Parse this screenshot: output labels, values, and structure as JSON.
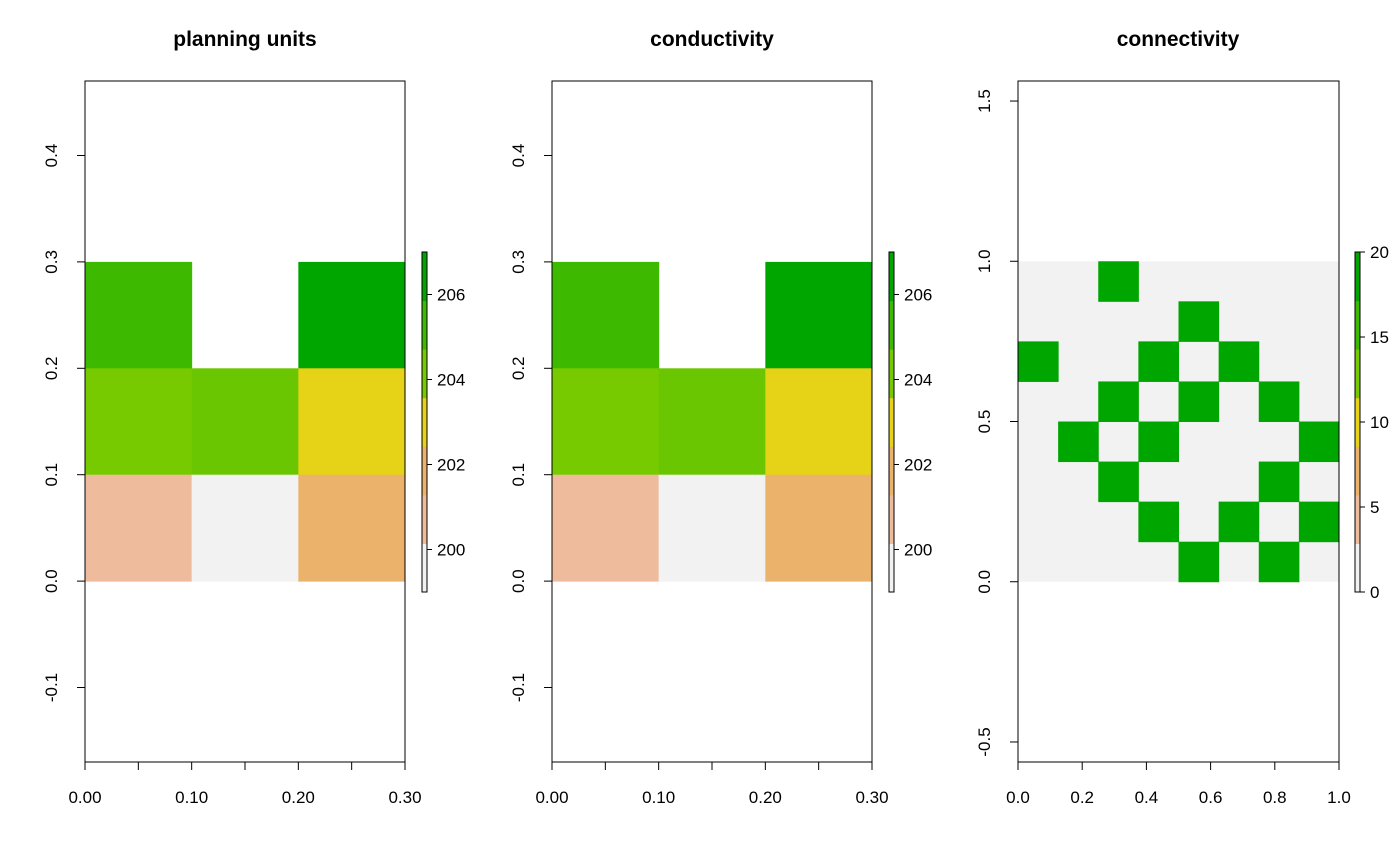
{
  "chart_data": [
    {
      "type": "heatmap",
      "title": "planning units",
      "xlim": [
        0,
        0.3
      ],
      "ylim": [
        -0.17,
        0.47
      ],
      "x_ticks": [
        0,
        0.05,
        0.1,
        0.15,
        0.2,
        0.25,
        0.3
      ],
      "x_tick_labels": [
        "0.00",
        "",
        "0.10",
        "",
        "0.20",
        "",
        "0.30"
      ],
      "y_ticks": [
        -0.1,
        0,
        0.1,
        0.2,
        0.3,
        0.4
      ],
      "y_tick_labels": [
        "-0.1",
        "0.0",
        "0.1",
        "0.2",
        "0.3",
        "0.4"
      ],
      "grid": false,
      "cell_size": [
        0.1,
        0.1
      ],
      "raster_extent": [
        0,
        0.3,
        0,
        0.3
      ],
      "rows": [
        {
          "y0": 0.2,
          "values": [
            205,
            null,
            207
          ]
        },
        {
          "y0": 0.1,
          "values": [
            204,
            204.5,
            203
          ]
        },
        {
          "y0": 0.0,
          "values": [
            200,
            199,
            201
          ]
        }
      ],
      "colorbar": {
        "min": 199,
        "max": 207,
        "ticks": [
          200,
          202,
          204,
          206
        ],
        "tick_labels": [
          "200",
          "202",
          "204",
          "206"
        ]
      },
      "colors": {
        "199": "#f2f2f2",
        "200": "#eebc9d",
        "201": "#eab26b",
        "203": "#e6d216",
        "204": "#78ca00",
        "204.5": "#6ac600",
        "205": "#3dba00",
        "207": "#00a600"
      }
    },
    {
      "type": "heatmap",
      "title": "conductivity",
      "xlim": [
        0,
        0.3
      ],
      "ylim": [
        -0.17,
        0.47
      ],
      "x_ticks": [
        0,
        0.05,
        0.1,
        0.15,
        0.2,
        0.25,
        0.3
      ],
      "x_tick_labels": [
        "0.00",
        "",
        "0.10",
        "",
        "0.20",
        "",
        "0.30"
      ],
      "y_ticks": [
        -0.1,
        0,
        0.1,
        0.2,
        0.3,
        0.4
      ],
      "y_tick_labels": [
        "-0.1",
        "0.0",
        "0.1",
        "0.2",
        "0.3",
        "0.4"
      ],
      "grid": false,
      "cell_size": [
        0.1,
        0.1
      ],
      "raster_extent": [
        0,
        0.3,
        0,
        0.3
      ],
      "rows": [
        {
          "y0": 0.2,
          "values": [
            205,
            null,
            207
          ]
        },
        {
          "y0": 0.1,
          "values": [
            204,
            204.5,
            203
          ]
        },
        {
          "y0": 0.0,
          "values": [
            200,
            199,
            201
          ]
        }
      ],
      "colorbar": {
        "min": 199,
        "max": 207,
        "ticks": [
          200,
          202,
          204,
          206
        ],
        "tick_labels": [
          "200",
          "202",
          "204",
          "206"
        ]
      },
      "colors": {
        "199": "#f2f2f2",
        "200": "#eebc9d",
        "201": "#eab26b",
        "203": "#e6d216",
        "204": "#78ca00",
        "204.5": "#6ac600",
        "205": "#3dba00",
        "207": "#00a600"
      }
    },
    {
      "type": "heatmap",
      "title": "connectivity",
      "xlim": [
        0,
        1
      ],
      "ylim": [
        -0.5625,
        1.5625
      ],
      "x_ticks": [
        0,
        0.2,
        0.4,
        0.6,
        0.8,
        1
      ],
      "x_tick_labels": [
        "0.0",
        "0.2",
        "0.4",
        "0.6",
        "0.8",
        "1.0"
      ],
      "y_ticks": [
        -0.5,
        0,
        0.5,
        1,
        1.5
      ],
      "y_tick_labels": [
        "-0.5",
        "0.0",
        "0.5",
        "1.0",
        "1.5"
      ],
      "grid": false,
      "raster_extent": [
        0,
        1,
        0,
        1
      ],
      "cell_size": [
        0.125,
        0.125
      ],
      "background_value": 0,
      "highlight_value": 20,
      "highlight_cells": [
        [
          2,
          0
        ],
        [
          4,
          1
        ],
        [
          0,
          2
        ],
        [
          3,
          2
        ],
        [
          5,
          2
        ],
        [
          2,
          3
        ],
        [
          4,
          3
        ],
        [
          6,
          3
        ],
        [
          1,
          4
        ],
        [
          3,
          4
        ],
        [
          7,
          4
        ],
        [
          2,
          5
        ],
        [
          6,
          5
        ],
        [
          3,
          6
        ],
        [
          5,
          6
        ],
        [
          7,
          6
        ],
        [
          4,
          7
        ],
        [
          6,
          7
        ]
      ],
      "colorbar": {
        "min": 0,
        "max": 20,
        "ticks": [
          0,
          5,
          10,
          15,
          20
        ],
        "tick_labels": [
          "0",
          "5",
          "10",
          "15",
          "20"
        ]
      },
      "colors": {
        "0": "#f2f2f2",
        "20": "#00a600"
      }
    }
  ],
  "colorbar_palette": [
    "#f2f2f2",
    "#eebc9d",
    "#eab26b",
    "#e6d216",
    "#78ca00",
    "#3dba00",
    "#00a600"
  ]
}
